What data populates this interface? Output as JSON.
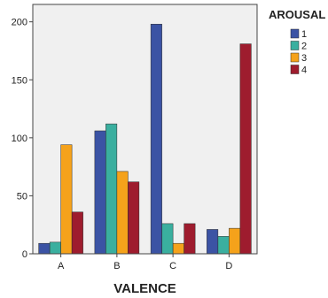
{
  "chart_data": {
    "type": "bar",
    "title": "",
    "xlabel": "VALENCE",
    "ylabel": "",
    "categories": [
      "A",
      "B",
      "C",
      "D"
    ],
    "ylim": [
      0,
      215
    ],
    "yticks": [
      0,
      50,
      100,
      150,
      200
    ],
    "grid": false,
    "legend": {
      "title": "AROUSAL",
      "placement": "right"
    },
    "series": [
      {
        "name": "1",
        "color": "#3b53a4",
        "values": [
          9,
          106,
          198,
          21
        ]
      },
      {
        "name": "2",
        "color": "#3aaf9f",
        "values": [
          10,
          112,
          26,
          15
        ]
      },
      {
        "name": "3",
        "color": "#f5a21b",
        "values": [
          94,
          71,
          9,
          22
        ]
      },
      {
        "name": "4",
        "color": "#9e1c2e",
        "values": [
          36,
          62,
          26,
          181
        ]
      }
    ],
    "plot_background": "#f0f0f0"
  }
}
